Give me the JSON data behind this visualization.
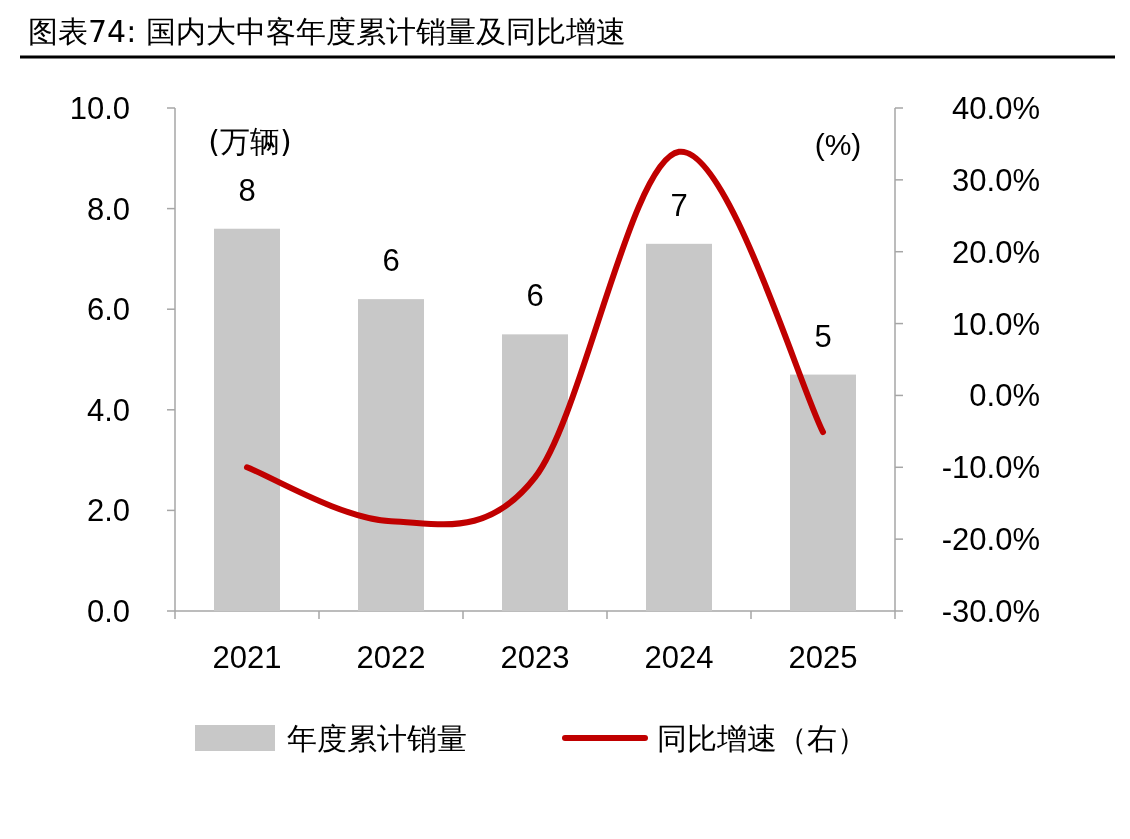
{
  "chart_data": {
    "type": "bar",
    "title": "图表74: 国内大中客年度累计销量及同比增速",
    "ylabel": "(万辆)",
    "y2label": "(%)",
    "categories": [
      "2021",
      "2022",
      "2023",
      "2024",
      "2025"
    ],
    "series": [
      {
        "name": "年度累计销量",
        "color": "#c8c8c8",
        "values": [
          7.6,
          6.2,
          5.5,
          7.3,
          4.7
        ],
        "value_labels": [
          "8",
          "6",
          "6",
          "7",
          "5"
        ]
      },
      {
        "name": "同比增速（右）",
        "type": "line",
        "axis": "y2",
        "color": "#c00000",
        "values": [
          -10.0,
          -17.5,
          -11.4,
          33.9,
          -5.1
        ]
      }
    ],
    "ylim": [
      0,
      10
    ],
    "yticks": [
      {
        "value": 0,
        "label": "0.0"
      },
      {
        "value": 2,
        "label": "2.0"
      },
      {
        "value": 4,
        "label": "4.0"
      },
      {
        "value": 6,
        "label": "6.0"
      },
      {
        "value": 8,
        "label": "8.0"
      },
      {
        "value": 10,
        "label": "10.0"
      }
    ],
    "y2lim": [
      -30,
      40
    ],
    "y2ticks": [
      {
        "value": -30,
        "label": "-30.0%"
      },
      {
        "value": -20,
        "label": "-20.0%"
      },
      {
        "value": -10,
        "label": "-10.0%"
      },
      {
        "value": 0,
        "label": "0.0%"
      },
      {
        "value": 10,
        "label": "10.0%"
      },
      {
        "value": 20,
        "label": "20.0%"
      },
      {
        "value": 30,
        "label": "30.0%"
      },
      {
        "value": 40,
        "label": "40.0%"
      }
    ],
    "legend": "bottom"
  }
}
